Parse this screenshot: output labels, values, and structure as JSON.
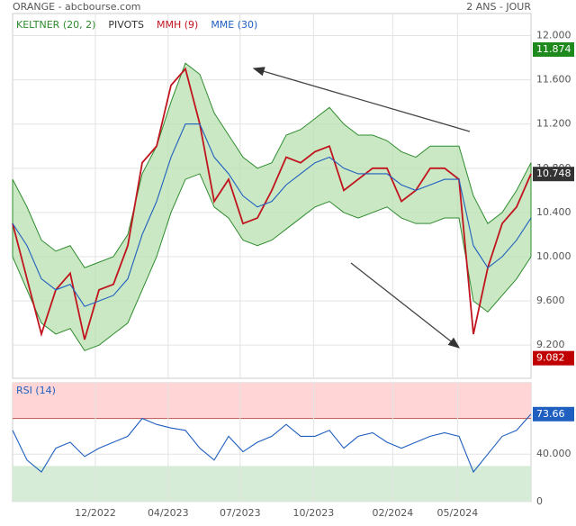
{
  "chart_data": [
    {
      "type": "line",
      "title": "ORANGE - abcbourse.com",
      "subtitle": "2 ANS - JOUR",
      "ylim": [
        8.9,
        12.2
      ],
      "yticks": [
        {
          "value": 9.2,
          "label": "9.200"
        },
        {
          "value": 9.6,
          "label": "9.600"
        },
        {
          "value": 10,
          "label": "10.000"
        },
        {
          "value": 10.4,
          "label": "10.400"
        },
        {
          "value": 10.8,
          "label": "10.800"
        },
        {
          "value": 11.2,
          "label": "11.200"
        },
        {
          "value": 11.6,
          "label": "11.600"
        },
        {
          "value": 12,
          "label": "12.000"
        }
      ],
      "band": {
        "name": "KELTNER (20, 2)",
        "color": "#2e8b2e",
        "upper": [
          10.7,
          10.45,
          10.15,
          10.05,
          10.1,
          9.9,
          9.95,
          10.0,
          10.2,
          10.75,
          11.0,
          11.4,
          11.75,
          11.65,
          11.3,
          11.1,
          10.9,
          10.8,
          10.85,
          11.1,
          11.15,
          11.25,
          11.35,
          11.2,
          11.1,
          11.1,
          11.05,
          10.95,
          10.9,
          11.0,
          11.0,
          11.0,
          10.55,
          10.3,
          10.4,
          10.6,
          10.85
        ],
        "lower": [
          10.0,
          9.7,
          9.4,
          9.3,
          9.35,
          9.15,
          9.2,
          9.3,
          9.4,
          9.7,
          10.0,
          10.4,
          10.7,
          10.75,
          10.45,
          10.35,
          10.15,
          10.1,
          10.15,
          10.25,
          10.35,
          10.45,
          10.5,
          10.4,
          10.35,
          10.4,
          10.45,
          10.35,
          10.3,
          10.3,
          10.35,
          10.35,
          9.6,
          9.5,
          9.65,
          9.8,
          10.0
        ]
      },
      "pivots": {
        "name": "PIVOTS",
        "color": "#333333"
      },
      "series": [
        {
          "name": "MMH (9)",
          "color": "#c0141e",
          "values": [
            10.3,
            9.8,
            9.3,
            9.7,
            9.85,
            9.25,
            9.7,
            9.75,
            10.1,
            10.85,
            11.0,
            11.55,
            11.7,
            11.2,
            10.5,
            10.7,
            10.3,
            10.35,
            10.6,
            10.9,
            10.85,
            10.95,
            11.0,
            10.6,
            10.7,
            10.8,
            10.8,
            10.5,
            10.6,
            10.8,
            10.8,
            10.7,
            9.3,
            9.9,
            10.3,
            10.45,
            10.75
          ]
        },
        {
          "name": "MME (30)",
          "color": "#1f5fbf",
          "values": [
            10.3,
            10.1,
            9.8,
            9.7,
            9.75,
            9.55,
            9.6,
            9.65,
            9.8,
            10.2,
            10.5,
            10.9,
            11.2,
            11.2,
            10.9,
            10.75,
            10.55,
            10.45,
            10.5,
            10.65,
            10.75,
            10.85,
            10.9,
            10.8,
            10.75,
            10.75,
            10.75,
            10.65,
            10.6,
            10.65,
            10.7,
            10.7,
            10.1,
            9.9,
            10.0,
            10.15,
            10.35
          ]
        }
      ],
      "badges": [
        {
          "value": 11.874,
          "color": "#1e8a1e"
        },
        {
          "value": 10.748,
          "color": "#333333"
        },
        {
          "value": 9.082,
          "color": "#c00000"
        }
      ]
    },
    {
      "type": "line",
      "title": "RSI (14)",
      "ylim": [
        0,
        100
      ],
      "yticks": [
        0,
        {
          "value": 40,
          "label": "40.000"
        }
      ],
      "zones": [
        {
          "from": 70,
          "to": 100,
          "color": "#ffd5d5"
        },
        {
          "from": 0,
          "to": 30,
          "color": "#d6ecd6"
        }
      ],
      "xticks": [
        {
          "value": 5.75,
          "label": "12/2022"
        },
        {
          "value": 10.8,
          "label": "04/2023"
        },
        {
          "value": 15.8,
          "label": "07/2023"
        },
        {
          "value": 20.9,
          "label": "10/2023"
        },
        {
          "value": 26.4,
          "label": "02/2024"
        },
        {
          "value": 30.9,
          "label": "05/2024"
        }
      ],
      "series": [
        {
          "name": "RSI (14)",
          "color": "#1f5fbf",
          "values": [
            60,
            35,
            25,
            45,
            50,
            38,
            45,
            50,
            55,
            70,
            65,
            62,
            60,
            45,
            35,
            55,
            42,
            50,
            55,
            65,
            55,
            55,
            60,
            45,
            55,
            58,
            50,
            45,
            50,
            55,
            58,
            55,
            25,
            40,
            55,
            60,
            73.66
          ]
        }
      ],
      "badges": [
        {
          "value": 73.66,
          "color": "#1f5fbf"
        }
      ]
    }
  ]
}
